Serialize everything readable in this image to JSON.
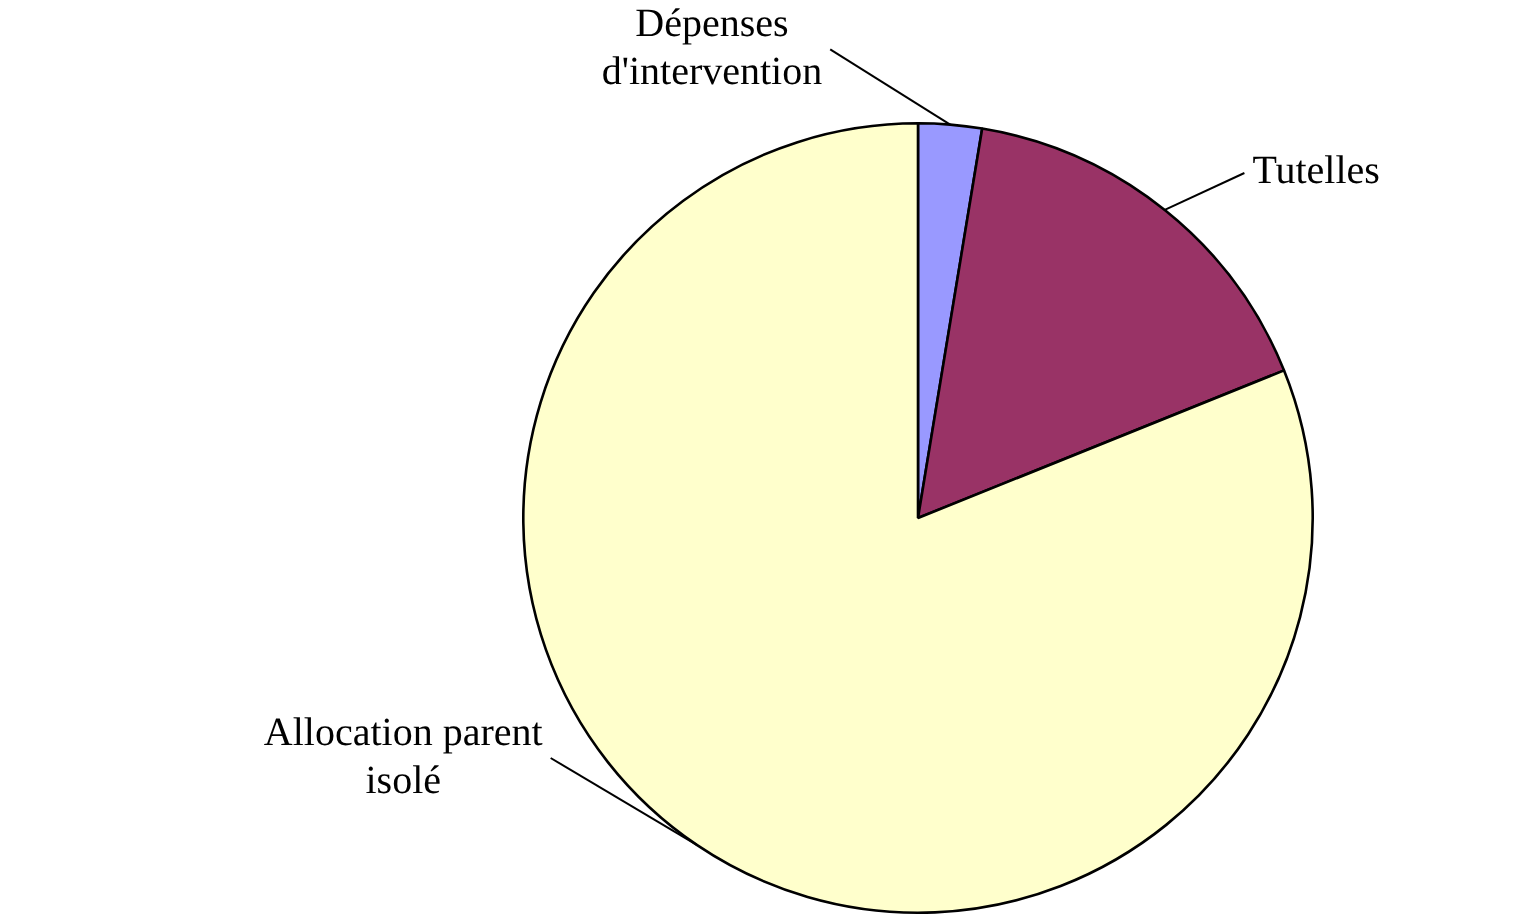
{
  "chart_data": {
    "type": "pie",
    "categories": [
      "Dépenses d'intervention",
      "Tutelles",
      "Allocation parent isolé"
    ],
    "values": [
      2.6,
      16.3,
      81.1
    ],
    "colors": [
      "#9999ff",
      "#993366",
      "#ffffcc"
    ],
    "legend": false
  }
}
